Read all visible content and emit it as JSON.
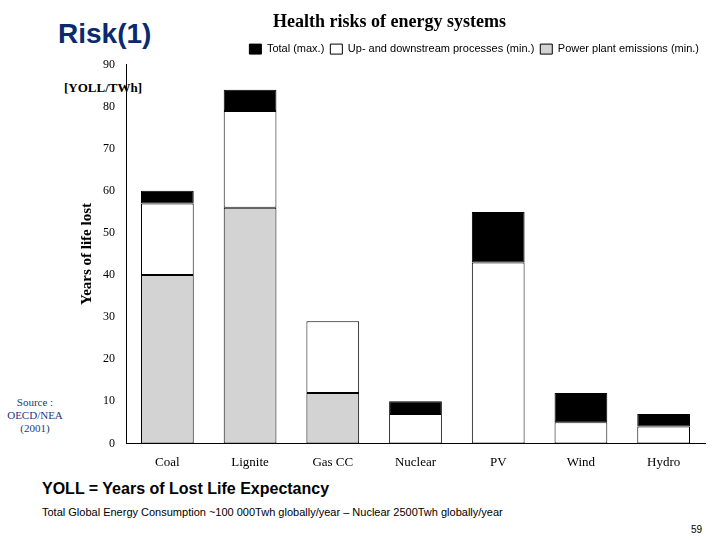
{
  "chart_data": {
    "type": "bar",
    "title": "Health risks of energy systems",
    "y_label": "Years of life lost",
    "y_unit": "[YOLL/TWh]",
    "source": "Source : OECD/NEA (2001)",
    "categories": [
      "Coal",
      "Lignite",
      "Gas CC",
      "Nuclear",
      "PV",
      "Wind",
      "Hydro"
    ],
    "series": [
      {
        "name": "Power plant emissions (min.)",
        "color": "#d3d3d3",
        "values": [
          40,
          56,
          12,
          0,
          0,
          0,
          0
        ]
      },
      {
        "name": "Up- and downstream processes (min.)",
        "color": "#ffffff",
        "values": [
          17,
          23,
          17,
          7,
          43,
          5,
          4
        ]
      },
      {
        "name": "Total (max.)",
        "color": "#000000",
        "values": [
          3,
          5,
          0,
          3,
          12,
          7,
          3
        ]
      }
    ],
    "stacked": true,
    "ylim": [
      0,
      90
    ],
    "yticks": [
      0,
      10,
      20,
      30,
      40,
      50,
      60,
      70,
      80,
      90
    ],
    "grid": false,
    "legend": "upper right"
  },
  "slide": {
    "heading": "Risk(1)",
    "definition": "YOLL = Years of Lost Life Expectancy",
    "footnote": "Total Global Energy Consumption ~100 000Twh globally/year – Nuclear 2500Twh globally/year",
    "page_number": 59
  }
}
